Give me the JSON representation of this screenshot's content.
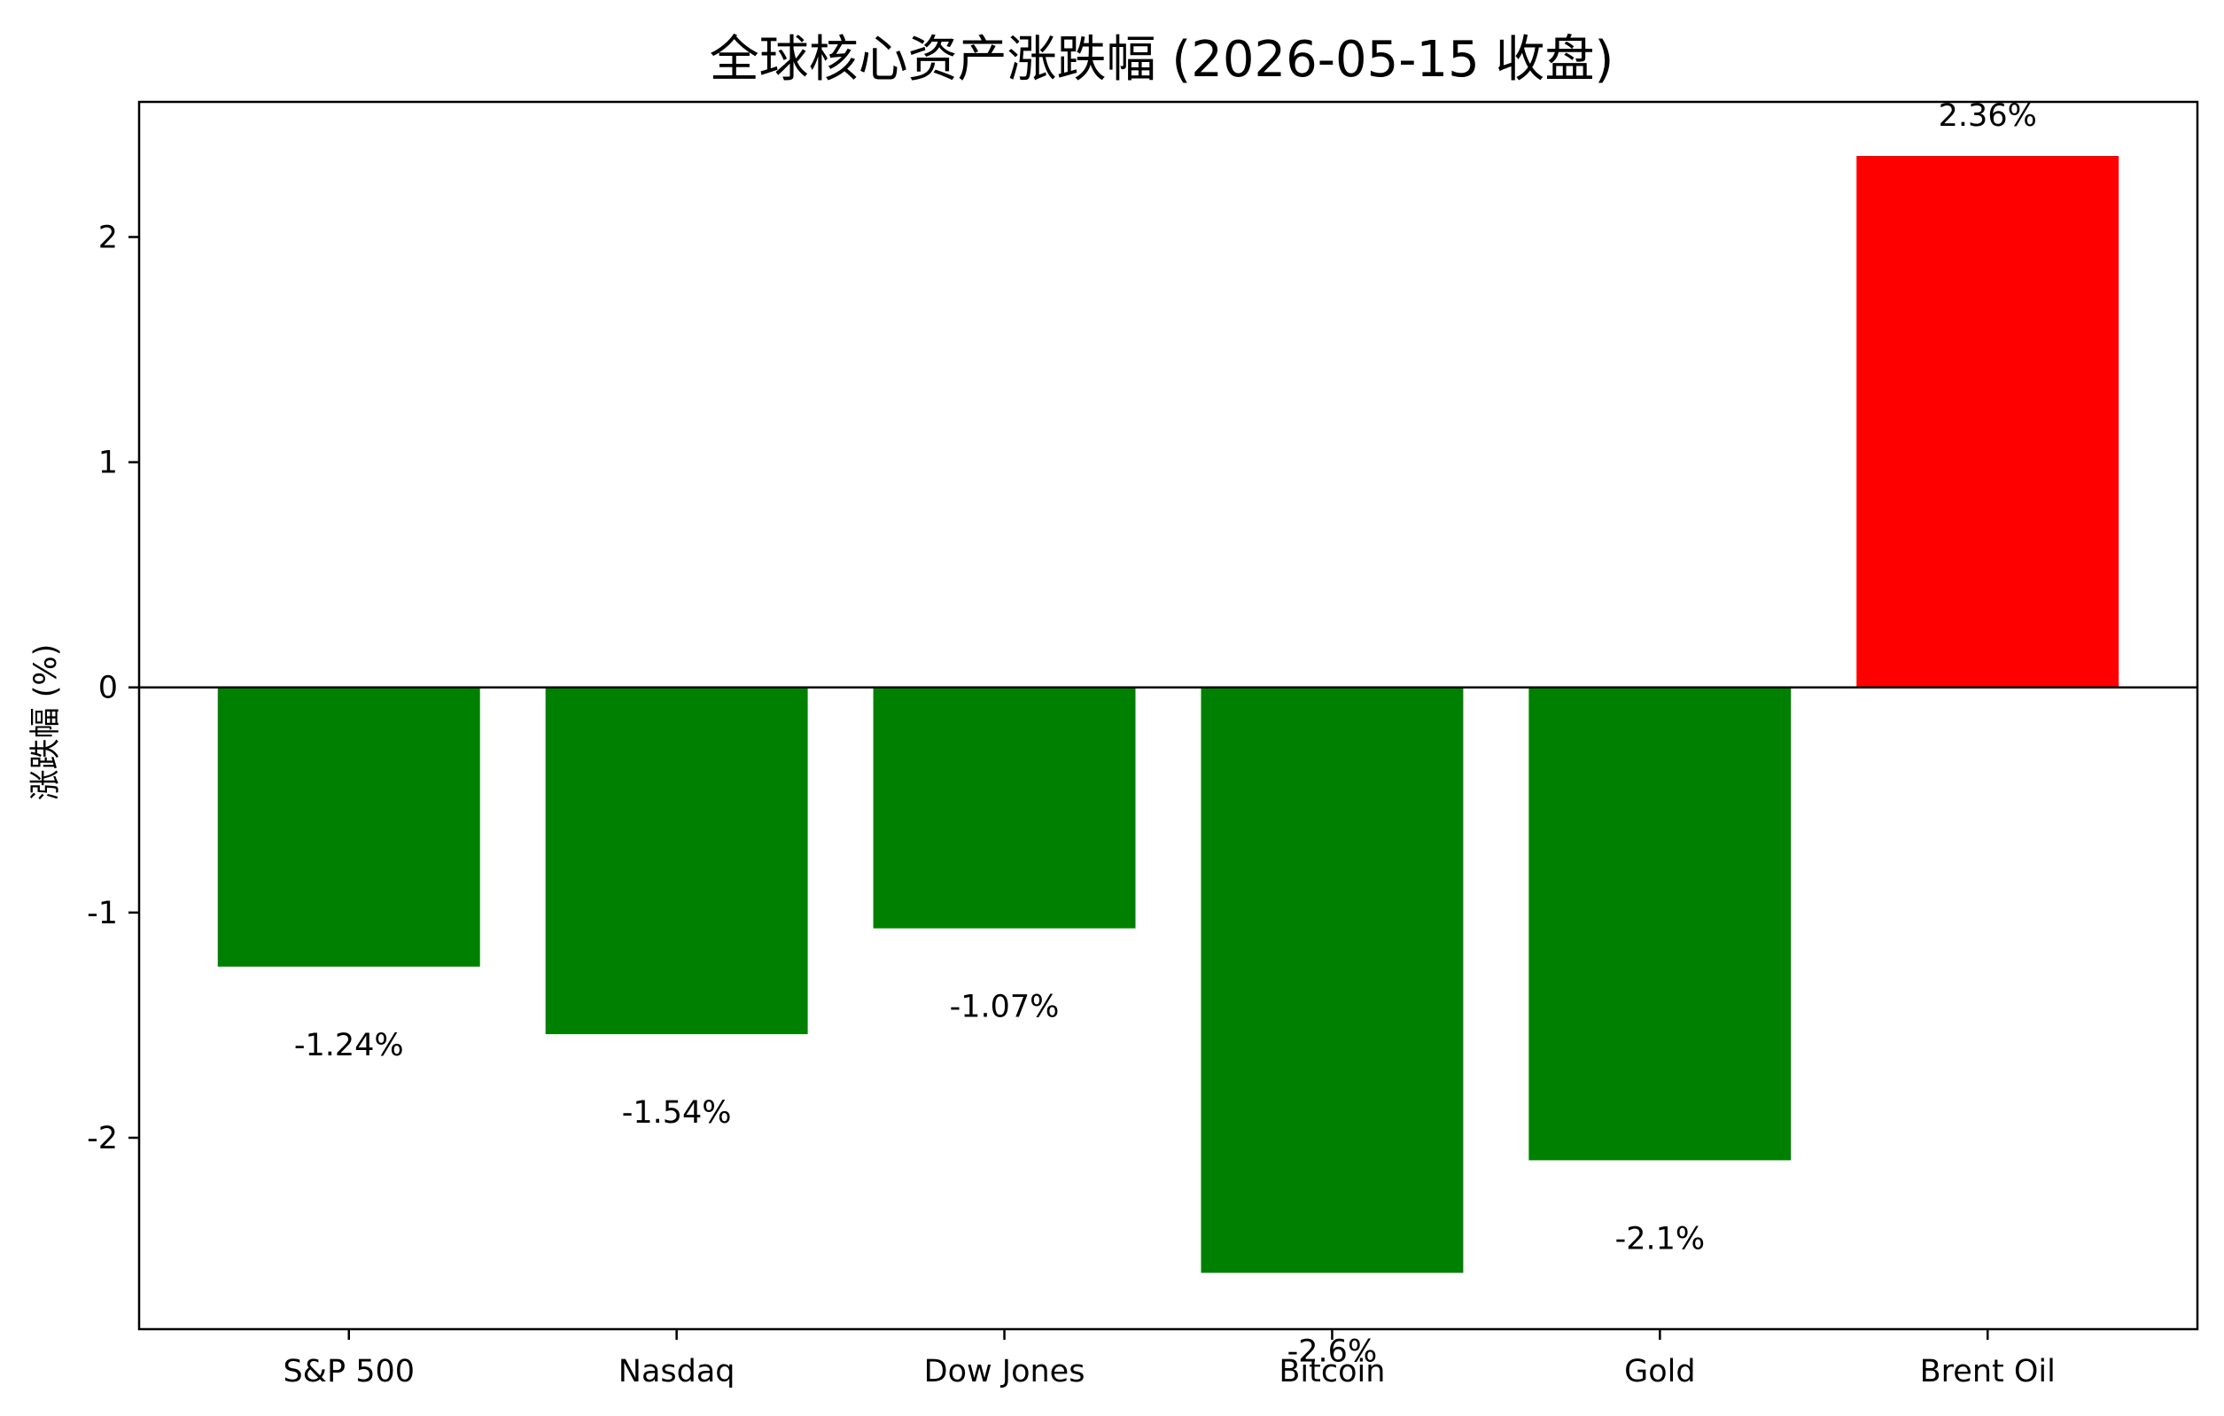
{
  "chart_data": {
    "type": "bar",
    "title": "全球核心资产涨跌幅 (2026-05-15 收盘)",
    "xlabel": "",
    "ylabel": "涨跌幅 (%)",
    "categories": [
      "S&P 500",
      "Nasdaq",
      "Dow Jones",
      "Bitcoin",
      "Gold",
      "Brent Oil"
    ],
    "values": [
      -1.24,
      -1.54,
      -1.07,
      -2.6,
      -2.1,
      2.36
    ],
    "data_labels": [
      "-1.24%",
      "-1.54%",
      "-1.07%",
      "-2.6%",
      "-2.1%",
      "2.36%"
    ],
    "ylim": [
      -2.85,
      2.6
    ],
    "yticks": [
      -2,
      -1,
      0,
      1,
      2
    ],
    "ytick_labels": [
      "-2",
      "-1",
      "0",
      "1",
      "2"
    ],
    "colors": {
      "up": "#ff0000",
      "down": "#008000"
    },
    "zero_line": true,
    "grid": false,
    "legend": "none"
  }
}
